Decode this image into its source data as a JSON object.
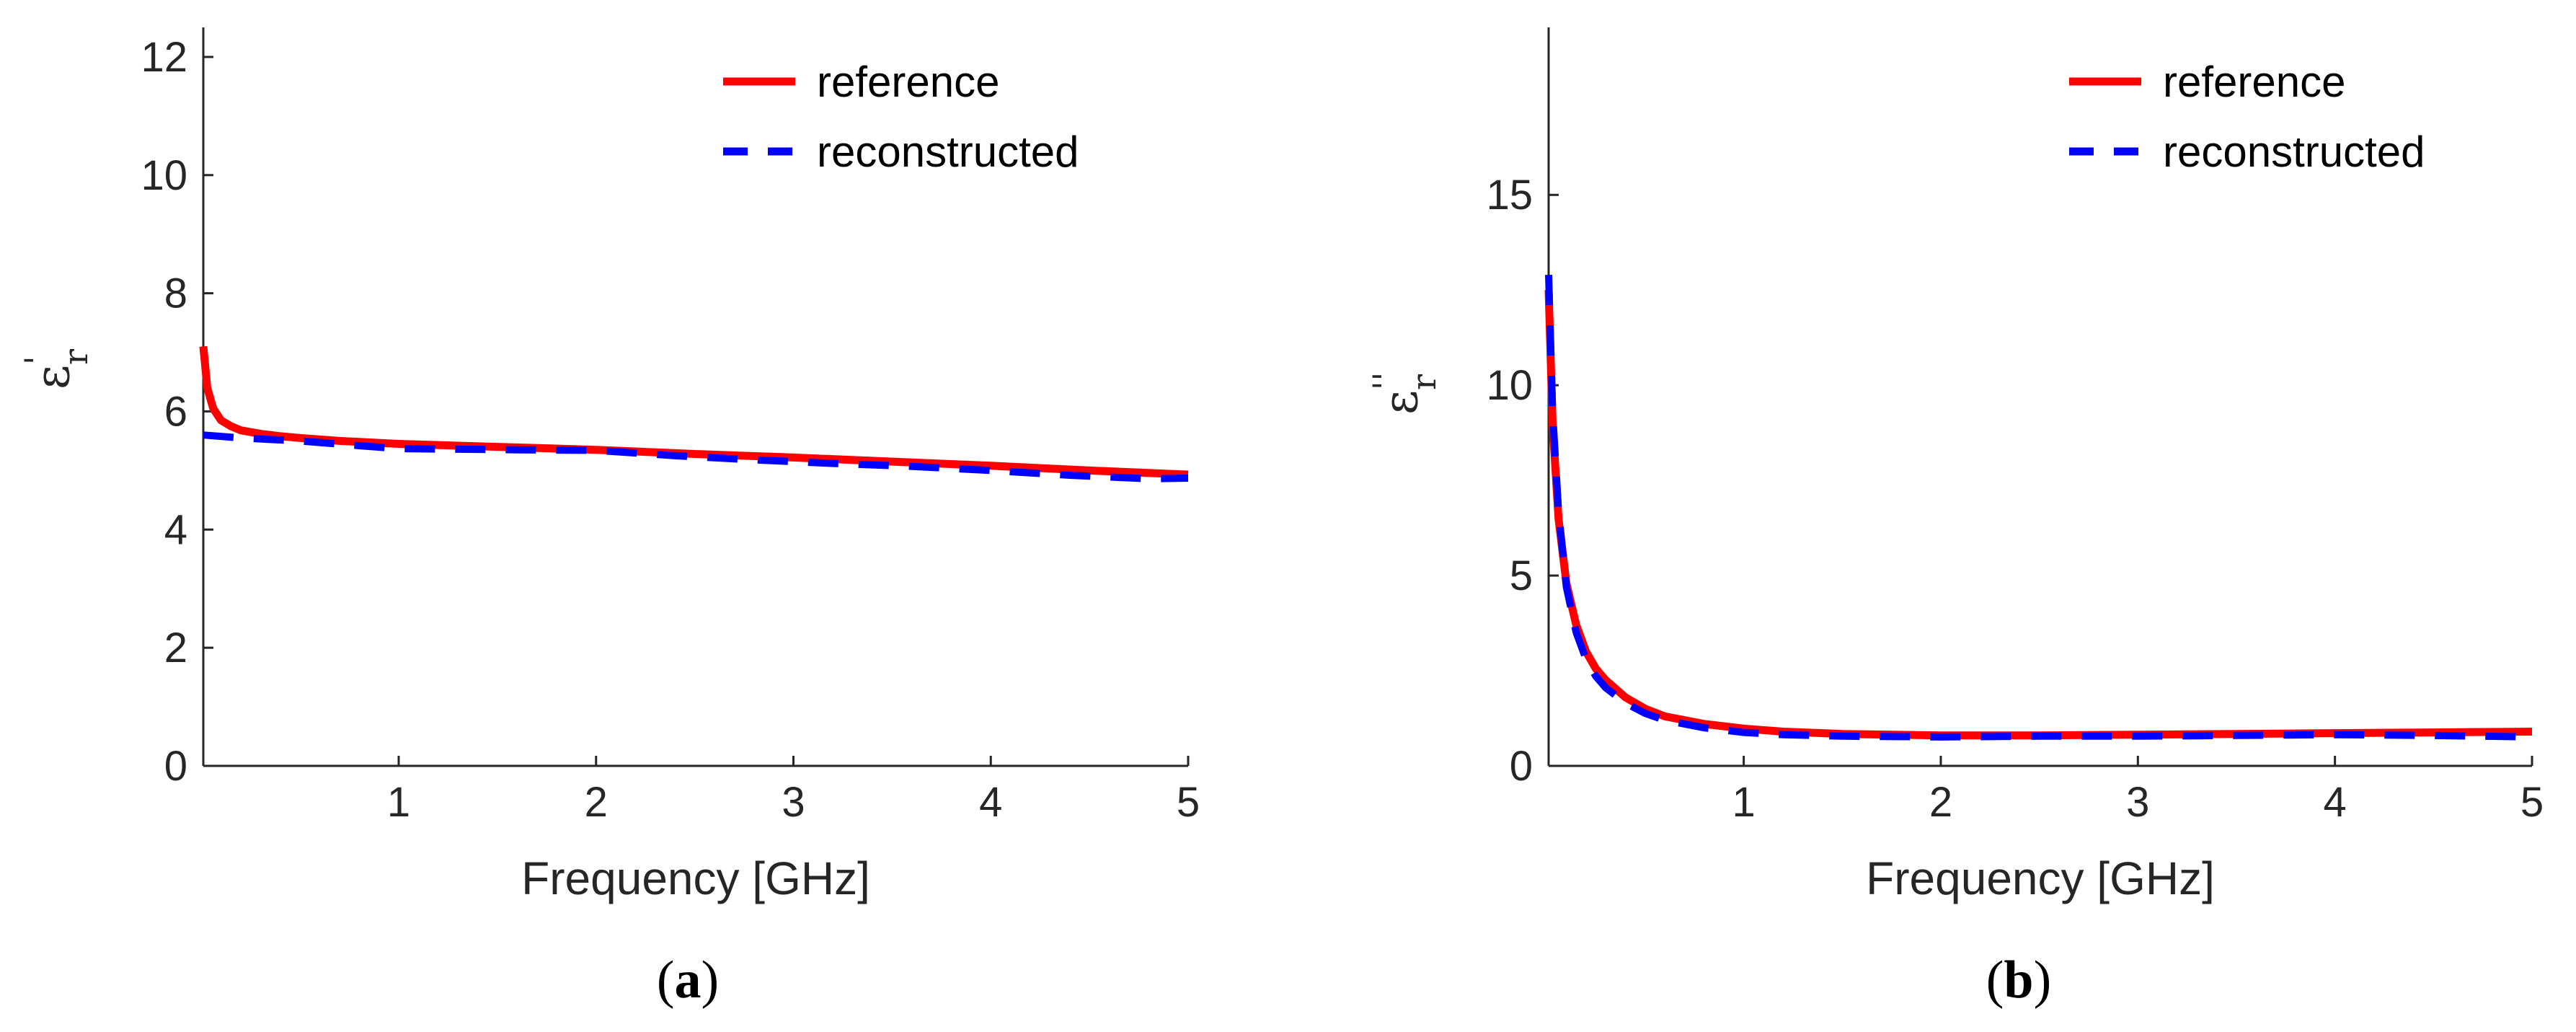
{
  "figure": {
    "panel_labels": [
      {
        "open": "(",
        "letter": "a",
        "close": ")"
      },
      {
        "open": "(",
        "letter": "b",
        "close": ")"
      }
    ]
  },
  "colors": {
    "reference": "#ff0000",
    "reconstructed": "#0000ff",
    "axis": "#262626"
  },
  "chart_data": [
    {
      "type": "line",
      "xlabel": "Frequency [GHz]",
      "ylabel_symbol": "ε",
      "ylabel_subscript": "r",
      "ylabel_superscript": "'",
      "xlim": [
        0.01,
        5
      ],
      "ylim": [
        0,
        12.5
      ],
      "xticks": [
        1,
        2,
        3,
        4,
        5
      ],
      "yticks": [
        0,
        2,
        4,
        6,
        8,
        10,
        12
      ],
      "legend_position": "top-right",
      "series": [
        {
          "name": "reference",
          "style": "solid",
          "x": [
            0.01,
            0.03,
            0.06,
            0.1,
            0.15,
            0.2,
            0.3,
            0.4,
            0.5,
            0.7,
            1.0,
            1.5,
            2.0,
            2.5,
            3.0,
            3.5,
            4.0,
            4.5,
            5.0
          ],
          "y": [
            7.1,
            6.4,
            6.05,
            5.85,
            5.75,
            5.68,
            5.62,
            5.58,
            5.55,
            5.5,
            5.45,
            5.4,
            5.35,
            5.28,
            5.22,
            5.15,
            5.08,
            5.0,
            4.93
          ]
        },
        {
          "name": "reconstructed",
          "style": "dashed",
          "x": [
            0.01,
            0.2,
            0.5,
            0.8,
            1.0,
            1.3,
            1.6,
            2.0,
            2.4,
            2.8,
            3.2,
            3.6,
            4.0,
            4.4,
            4.8,
            5.0
          ],
          "y": [
            5.6,
            5.55,
            5.5,
            5.42,
            5.37,
            5.36,
            5.35,
            5.34,
            5.25,
            5.18,
            5.12,
            5.07,
            5.0,
            4.92,
            4.86,
            4.87
          ]
        }
      ]
    },
    {
      "type": "line",
      "xlabel": "Frequency [GHz]",
      "ylabel_symbol": "ε",
      "ylabel_subscript": "r",
      "ylabel_superscript": "''",
      "xlim": [
        0.01,
        5
      ],
      "ylim": [
        0,
        19.4
      ],
      "xticks": [
        1,
        2,
        3,
        4,
        5
      ],
      "yticks": [
        0,
        5,
        10,
        15
      ],
      "legend_position": "top-right",
      "series": [
        {
          "name": "reference",
          "style": "solid",
          "x": [
            0.01,
            0.03,
            0.06,
            0.1,
            0.15,
            0.2,
            0.25,
            0.3,
            0.4,
            0.5,
            0.6,
            0.8,
            1.0,
            1.2,
            1.5,
            2.0,
            2.5,
            3.0,
            3.5,
            4.0,
            4.5,
            5.0
          ],
          "y": [
            12.5,
            9.0,
            6.5,
            4.8,
            3.7,
            3.0,
            2.55,
            2.25,
            1.8,
            1.5,
            1.3,
            1.1,
            0.98,
            0.9,
            0.84,
            0.8,
            0.8,
            0.82,
            0.84,
            0.86,
            0.88,
            0.9
          ]
        },
        {
          "name": "reconstructed",
          "style": "dashed",
          "x": [
            0.01,
            0.03,
            0.06,
            0.1,
            0.15,
            0.2,
            0.25,
            0.3,
            0.4,
            0.5,
            0.6,
            0.8,
            1.0,
            1.2,
            1.5,
            2.0,
            2.5,
            3.0,
            3.5,
            4.0,
            4.5,
            5.0
          ],
          "y": [
            12.9,
            9.3,
            6.7,
            4.7,
            3.5,
            2.8,
            2.35,
            2.05,
            1.65,
            1.38,
            1.2,
            1.0,
            0.88,
            0.82,
            0.78,
            0.76,
            0.78,
            0.78,
            0.8,
            0.82,
            0.8,
            0.76
          ]
        }
      ]
    }
  ]
}
